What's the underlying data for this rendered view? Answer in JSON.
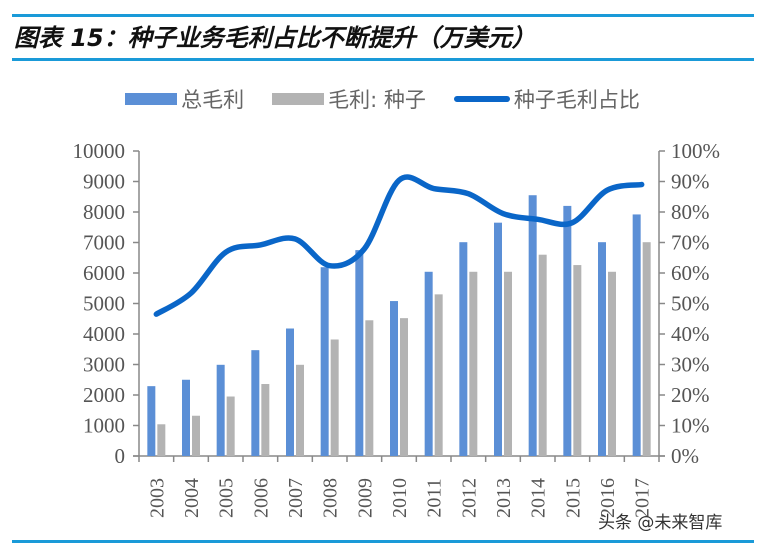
{
  "title": "图表 15：种子业务毛利占比不断提升（万美元）",
  "watermark": "头条 @未来智库",
  "colors": {
    "total": "#5b8fd6",
    "seed": "#b3b3b3",
    "ratio": "#0a66c8",
    "rule": "#1a9ad8"
  },
  "chart_data": {
    "type": "bar",
    "categories": [
      "2003",
      "2004",
      "2005",
      "2006",
      "2007",
      "2008",
      "2009",
      "2010",
      "2011",
      "2012",
      "2013",
      "2014",
      "2015",
      "2016",
      "2017"
    ],
    "series": [
      {
        "name": "总毛利",
        "type": "bar",
        "axis": "left",
        "values": [
          2290,
          2500,
          2990,
          3470,
          4180,
          6190,
          6750,
          5080,
          6040,
          7010,
          7650,
          8550,
          8200,
          7010,
          7920
        ]
      },
      {
        "name": "毛利: 种子",
        "type": "bar",
        "axis": "left",
        "values": [
          1040,
          1320,
          1950,
          2360,
          2990,
          3820,
          4450,
          4520,
          5300,
          6040,
          6040,
          6600,
          6260,
          6040,
          7010
        ]
      },
      {
        "name": "种子毛利占比",
        "type": "line",
        "axis": "right",
        "values": [
          46.5,
          53.4,
          66.8,
          69.2,
          71.2,
          62.4,
          67.9,
          90.4,
          87.7,
          86.0,
          79.5,
          77.6,
          76.5,
          87.1,
          89.0
        ]
      }
    ],
    "ylim": [
      0,
      10000
    ],
    "y2lim": [
      0,
      100
    ],
    "yticks": [
      "0",
      "1000",
      "2000",
      "3000",
      "4000",
      "5000",
      "6000",
      "7000",
      "8000",
      "9000",
      "10000"
    ],
    "y2ticks": [
      "0%",
      "10%",
      "20%",
      "30%",
      "40%",
      "50%",
      "60%",
      "70%",
      "80%",
      "90%",
      "100%"
    ],
    "legend": "top",
    "grid": false
  }
}
